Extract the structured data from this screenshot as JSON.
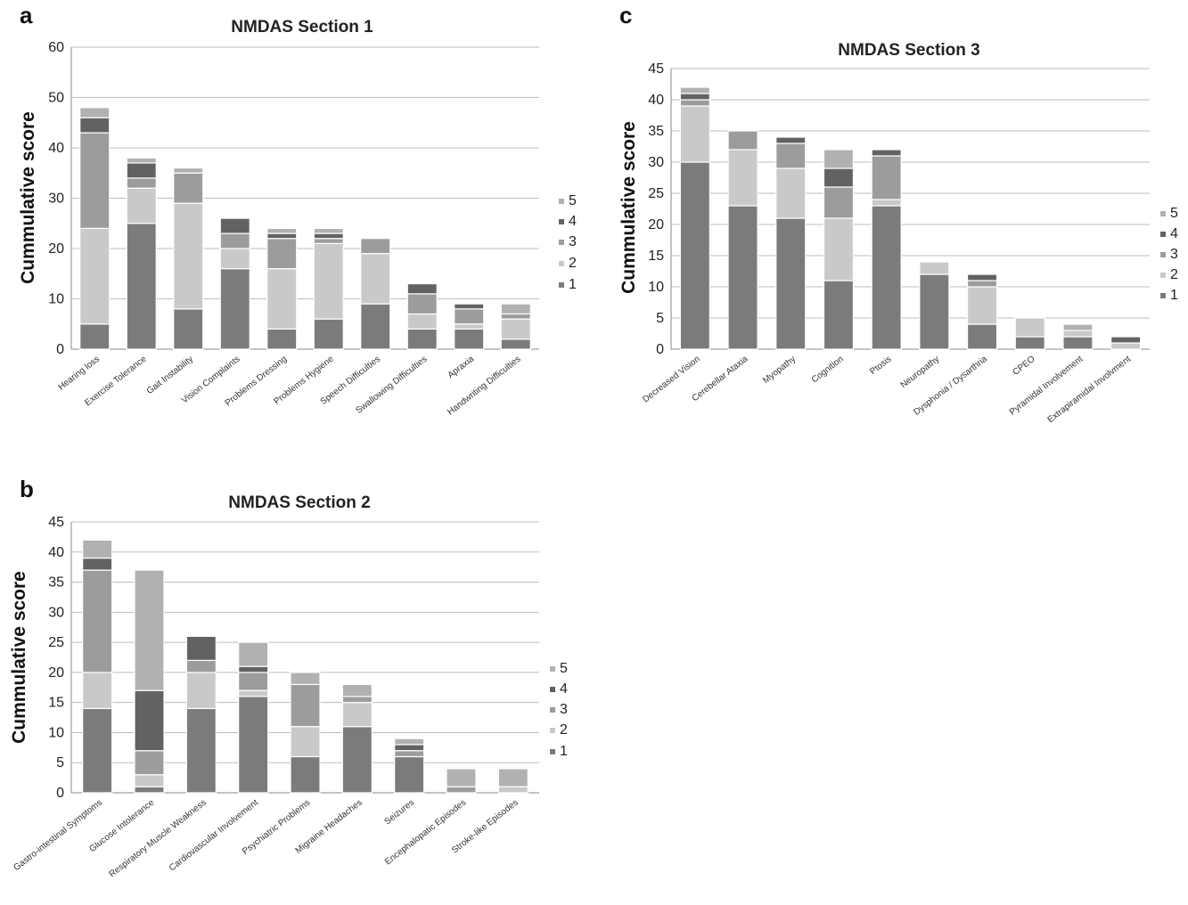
{
  "colors": {
    "1": "#7b7b7b",
    "2": "#c9c9c9",
    "3": "#9c9c9c",
    "4": "#626262",
    "5": "#b1b1b1"
  },
  "chart_data": [
    {
      "panel": "a",
      "type": "bar",
      "stacked": true,
      "title": "NMDAS Section 1",
      "ylabel": "Cummulative  score",
      "ylim": [
        0,
        60
      ],
      "yticks": [
        0,
        10,
        20,
        30,
        40,
        50,
        60
      ],
      "legend": [
        "5",
        "4",
        "3",
        "2",
        "1"
      ],
      "legend_position": "right",
      "categories": [
        "Hearing loss",
        "Exercise Tolerance",
        "Gait Instability",
        "Vision Complaints",
        "Problems Dressing",
        "Problems Hygiene",
        "Speech Difficulties",
        "Swallowing Difficulties",
        "Apraxia",
        "Handwriting Difficulties"
      ],
      "series": [
        {
          "name": "1",
          "values": [
            5,
            25,
            8,
            16,
            4,
            6,
            9,
            4,
            4,
            2
          ]
        },
        {
          "name": "2",
          "values": [
            19,
            7,
            21,
            4,
            12,
            15,
            10,
            3,
            1,
            4
          ]
        },
        {
          "name": "3",
          "values": [
            19,
            2,
            6,
            3,
            6,
            1,
            3,
            4,
            3,
            1
          ]
        },
        {
          "name": "4",
          "values": [
            3,
            3,
            0,
            3,
            1,
            1,
            0,
            2,
            1,
            0
          ]
        },
        {
          "name": "5",
          "values": [
            2,
            1,
            1,
            0,
            1,
            1,
            0,
            0,
            0,
            2
          ]
        }
      ]
    },
    {
      "panel": "b",
      "type": "bar",
      "stacked": true,
      "title": "NMDAS Section 2",
      "ylabel": "Cummulative score",
      "ylim": [
        0,
        45
      ],
      "yticks": [
        0,
        5,
        10,
        15,
        20,
        25,
        30,
        35,
        40,
        45
      ],
      "legend": [
        "5",
        "4",
        "3",
        "2",
        "1"
      ],
      "legend_position": "right",
      "categories": [
        "Gastro-intestinal Symptoms",
        "Glucose Intolerance",
        "Respiratory Muscle Weakness",
        "Cardiovascular Involvement",
        "Psychiatric Problems",
        "Migraine Headaches",
        "Seizures",
        "Encephalopatic Episodes",
        "Stroke-like Episodes"
      ],
      "series": [
        {
          "name": "1",
          "values": [
            14,
            1,
            14,
            16,
            6,
            11,
            6,
            0,
            0
          ]
        },
        {
          "name": "2",
          "values": [
            6,
            2,
            6,
            1,
            5,
            4,
            0,
            0,
            1
          ]
        },
        {
          "name": "3",
          "values": [
            17,
            4,
            2,
            3,
            7,
            1,
            1,
            1,
            0
          ]
        },
        {
          "name": "4",
          "values": [
            2,
            10,
            4,
            1,
            0,
            0,
            1,
            0,
            0
          ]
        },
        {
          "name": "5",
          "values": [
            3,
            20,
            0,
            4,
            2,
            2,
            1,
            3,
            3
          ]
        }
      ]
    },
    {
      "panel": "c",
      "type": "bar",
      "stacked": true,
      "title": "NMDAS Section 3",
      "ylabel": "Cummulative  score",
      "ylim": [
        0,
        45
      ],
      "yticks": [
        0,
        5,
        10,
        15,
        20,
        25,
        30,
        35,
        40,
        45
      ],
      "legend": [
        "5",
        "4",
        "3",
        "2",
        "1"
      ],
      "legend_position": "right",
      "categories": [
        "Decreased Vision",
        "Cerebellar Ataxia",
        "Myopathy",
        "Cognition",
        "Ptosis",
        "Neuropathy",
        "Dysphonia / Dysarthria",
        "CPEO",
        "Pyramidal Involvement",
        "Extrapiramidal Involvment"
      ],
      "series": [
        {
          "name": "1",
          "values": [
            30,
            23,
            21,
            11,
            23,
            12,
            4,
            2,
            2,
            0
          ]
        },
        {
          "name": "2",
          "values": [
            9,
            9,
            8,
            10,
            1,
            2,
            6,
            3,
            1,
            1
          ]
        },
        {
          "name": "3",
          "values": [
            1,
            3,
            4,
            5,
            7,
            0,
            1,
            0,
            0,
            0
          ]
        },
        {
          "name": "4",
          "values": [
            1,
            0,
            1,
            3,
            1,
            0,
            1,
            0,
            0,
            1
          ]
        },
        {
          "name": "5",
          "values": [
            1,
            0,
            0,
            3,
            0,
            0,
            0,
            0,
            1,
            0
          ]
        }
      ]
    }
  ]
}
